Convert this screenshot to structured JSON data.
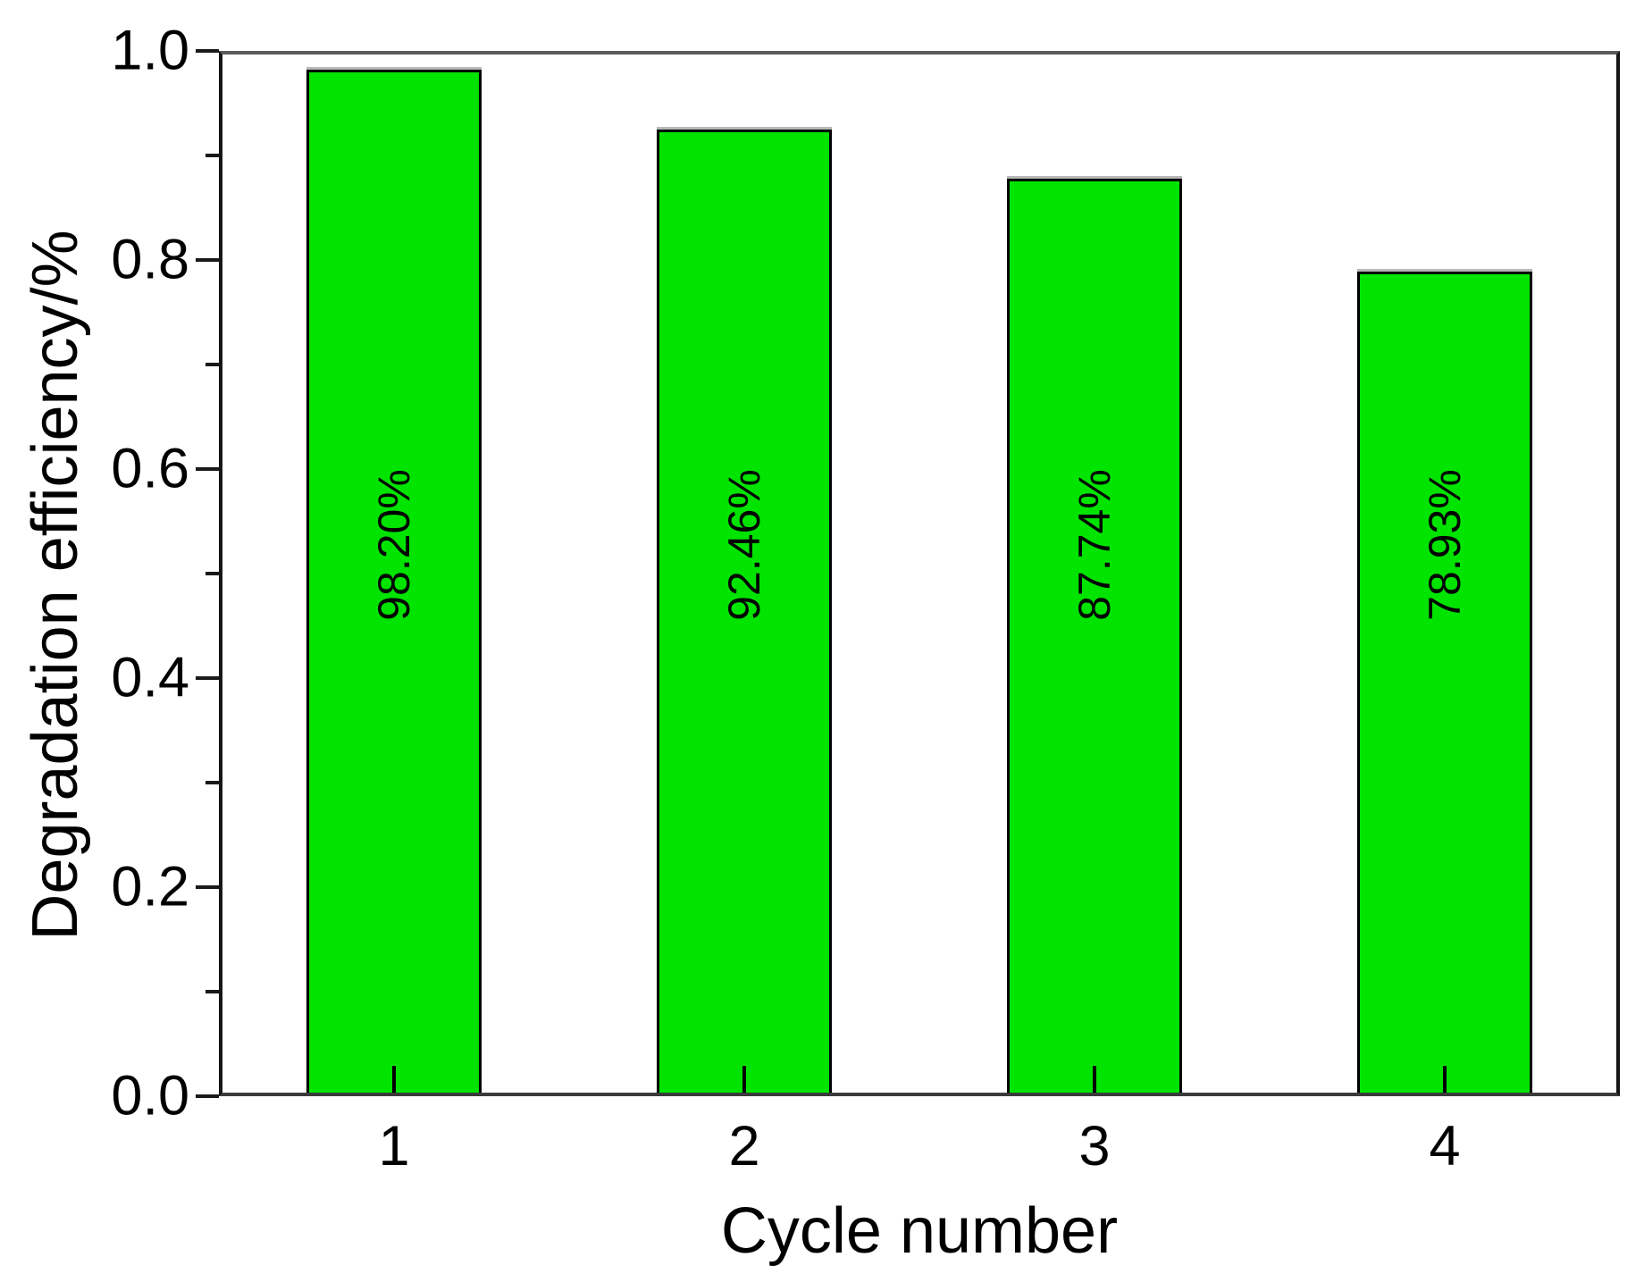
{
  "chart_data": {
    "type": "bar",
    "xlabel": "Cycle number",
    "ylabel": "Degradation efficiency/%",
    "categories": [
      "1",
      "2",
      "3",
      "4"
    ],
    "values": [
      0.982,
      0.9246,
      0.8774,
      0.7893
    ],
    "bar_labels": [
      "98.20%",
      "92.46%",
      "87.74%",
      "78.93%"
    ],
    "ylim": [
      0.0,
      1.0
    ],
    "x_range": [
      0.5,
      4.5
    ],
    "bar_width": 0.5,
    "y_major_ticks": [
      0.0,
      0.2,
      0.4,
      0.6,
      0.8,
      1.0
    ],
    "y_major_tick_labels": [
      "0.0",
      "0.2",
      "0.4",
      "0.6",
      "0.8",
      "1.0"
    ],
    "y_minor_ticks": [
      0.1,
      0.3,
      0.5,
      0.7,
      0.9
    ],
    "bar_label_center_value": 0.527,
    "grid": false,
    "legend": "none",
    "colors": {
      "bar_fill": "#00E400",
      "bar_border": "#000000",
      "axis_frame": "#3a3a3a",
      "tick": "#1a1a1a",
      "text": "#000000",
      "background": "#FFFFFF"
    }
  }
}
